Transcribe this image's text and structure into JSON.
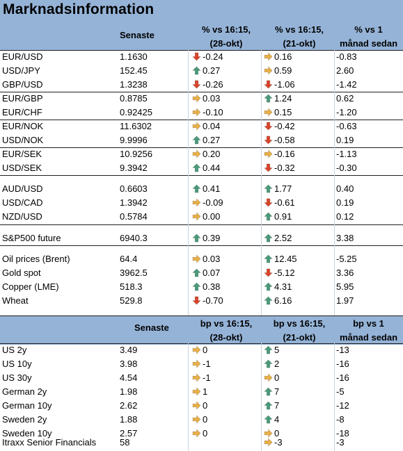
{
  "title": "Marknadsinformation",
  "colors": {
    "header_band": "#95b3d7",
    "arrow_up": "#4a9a7a",
    "arrow_right": "#e8b04a",
    "arrow_down": "#d9442b"
  },
  "fx_header": {
    "senaste": "Senaste",
    "col_a_line1": "% vs 16:15,",
    "col_a_line2": "(28-okt)",
    "col_b_line1": "% vs 16:15,",
    "col_b_line2": "(21-okt)",
    "col_c_line1": "% vs 1",
    "col_c_line2": "månad sedan"
  },
  "fx_rows": [
    {
      "name": "EUR/USD",
      "last": "1.1630",
      "a": "-0.24",
      "a_icon": "down",
      "b": "0.16",
      "b_icon": "right",
      "c": "-0.83"
    },
    {
      "name": "USD/JPY",
      "last": "152.45",
      "a": "0.27",
      "a_icon": "up",
      "b": "0.59",
      "b_icon": "right",
      "c": "2.60"
    },
    {
      "name": "GBP/USD",
      "last": "1.3238",
      "a": "-0.26",
      "a_icon": "down",
      "b": "-1.06",
      "b_icon": "down",
      "c": "-1.42"
    },
    {
      "name": "EUR/GBP",
      "last": "0.8785",
      "a": "0.03",
      "a_icon": "right",
      "b": "1.24",
      "b_icon": "up",
      "c": "0.62"
    },
    {
      "name": "EUR/CHF",
      "last": "0.92425",
      "a": "-0.10",
      "a_icon": "right",
      "b": "0.15",
      "b_icon": "right",
      "c": "-1.20"
    },
    {
      "name": "EUR/NOK",
      "last": "11.6302",
      "a": "0.04",
      "a_icon": "right",
      "b": "-0.42",
      "b_icon": "down",
      "c": "-0.63"
    },
    {
      "name": "USD/NOK",
      "last": "9.9996",
      "a": "0.27",
      "a_icon": "up",
      "b": "-0.58",
      "b_icon": "down",
      "c": "0.19"
    },
    {
      "name": "EUR/SEK",
      "last": "10.9256",
      "a": "0.20",
      "a_icon": "right",
      "b": "-0.16",
      "b_icon": "right",
      "c": "-1.13"
    },
    {
      "name": "USD/SEK",
      "last": "9.3942",
      "a": "0.44",
      "a_icon": "up",
      "b": "-0.32",
      "b_icon": "down",
      "c": "-0.30"
    },
    {
      "name": "AUD/USD",
      "last": "0.6603",
      "a": "0.41",
      "a_icon": "up",
      "b": "1.77",
      "b_icon": "up",
      "c": "0.40"
    },
    {
      "name": "USD/CAD",
      "last": "1.3942",
      "a": "-0.09",
      "a_icon": "right",
      "b": "-0.61",
      "b_icon": "down",
      "c": "0.19"
    },
    {
      "name": "NZD/USD",
      "last": "0.5784",
      "a": "0.00",
      "a_icon": "right",
      "b": "0.91",
      "b_icon": "up",
      "c": "0.12"
    },
    {
      "name": "S&P500 future",
      "last": "6940.3",
      "a": "0.39",
      "a_icon": "up",
      "b": "2.52",
      "b_icon": "up",
      "c": "3.38"
    },
    {
      "name": "Oil prices (Brent)",
      "last": "64.4",
      "a": "0.03",
      "a_icon": "right",
      "b": "12.45",
      "b_icon": "up",
      "c": "-5.25"
    },
    {
      "name": "Gold spot",
      "last": "3962.5",
      "a": "0.07",
      "a_icon": "up",
      "b": "-5.12",
      "b_icon": "down",
      "c": "3.36"
    },
    {
      "name": "Copper (LME)",
      "last": "518.3",
      "a": "0.38",
      "a_icon": "up",
      "b": "4.31",
      "b_icon": "up",
      "c": "5.95"
    },
    {
      "name": "Wheat",
      "last": "529.8",
      "a": "-0.70",
      "a_icon": "down",
      "b": "6.16",
      "b_icon": "up",
      "c": "1.97"
    }
  ],
  "bond_header": {
    "senaste": "Senaste",
    "col_a_line1": "bp vs 16:15,",
    "col_a_line2": "(28-okt)",
    "col_b_line1": "bp vs 16:15,",
    "col_b_line2": "(21-okt)",
    "col_c_line1": "bp vs 1",
    "col_c_line2": "månad sedan"
  },
  "bond_rows": [
    {
      "name": "US 2y",
      "last": "3.49",
      "a": "0",
      "a_icon": "right",
      "b": "5",
      "b_icon": "up",
      "c": "-13"
    },
    {
      "name": "US 10y",
      "last": "3.98",
      "a": "-1",
      "a_icon": "right",
      "b": "2",
      "b_icon": "up",
      "c": "-16"
    },
    {
      "name": "US 30y",
      "last": "4.54",
      "a": "-1",
      "a_icon": "right",
      "b": "0",
      "b_icon": "right",
      "c": "-16"
    },
    {
      "name": "German 2y",
      "last": "1.98",
      "a": "1",
      "a_icon": "right",
      "b": "7",
      "b_icon": "up",
      "c": "-5"
    },
    {
      "name": "German 10y",
      "last": "2.62",
      "a": "0",
      "a_icon": "right",
      "b": "7",
      "b_icon": "up",
      "c": "-12"
    },
    {
      "name": "Sweden 2y",
      "last": "1.88",
      "a": "0",
      "a_icon": "right",
      "b": "4",
      "b_icon": "up",
      "c": "-8"
    },
    {
      "name": "Sweden 10y",
      "last": "2.57",
      "a": "0",
      "a_icon": "right",
      "b": "0",
      "b_icon": "right",
      "c": "-18"
    },
    {
      "name": "Itraxx Senior Financials",
      "last": "58",
      "a": "",
      "a_icon": "",
      "b": "-3",
      "b_icon": "right",
      "c": "-3"
    }
  ]
}
